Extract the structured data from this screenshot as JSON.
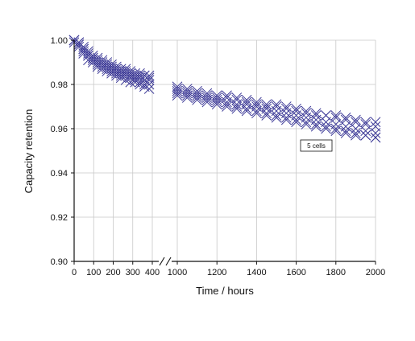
{
  "chart_data": {
    "type": "scatter",
    "xlabel": "Time / hours",
    "ylabel": "Capacity retention",
    "ylim": [
      0.9,
      1.0
    ],
    "grid": true,
    "marker": "x",
    "marker_color": "#3b3896",
    "axis_break": "between 400 and 1000 hours",
    "annotation": "5 cells",
    "segments": [
      {
        "xlim": [
          0,
          400
        ],
        "xticks": [
          0,
          100,
          200,
          300,
          400
        ],
        "xtick_labels": [
          "0",
          "100",
          "200",
          "300",
          "400"
        ]
      },
      {
        "xlim": [
          1000,
          2000
        ],
        "xticks": [
          1000,
          1200,
          1400,
          1600,
          1800,
          2000
        ],
        "xtick_labels": [
          "1000",
          "1200",
          "1400",
          "1600",
          "1800",
          "2000"
        ]
      }
    ],
    "yticks": [
      0.9,
      0.92,
      0.94,
      0.96,
      0.98,
      1.0
    ],
    "ytick_labels": [
      "0.90",
      "0.92",
      "0.94",
      "0.96",
      "0.98",
      "1.00"
    ],
    "series": [
      {
        "values": [
          [
            0,
            1.0
          ],
          [
            24,
            0.999
          ],
          [
            48,
            0.996
          ],
          [
            72,
            0.994
          ],
          [
            96,
            0.992
          ],
          [
            120,
            0.991
          ],
          [
            144,
            0.99
          ],
          [
            168,
            0.989
          ],
          [
            192,
            0.988
          ],
          [
            216,
            0.987
          ],
          [
            240,
            0.986
          ],
          [
            264,
            0.986
          ],
          [
            288,
            0.985
          ],
          [
            312,
            0.984
          ],
          [
            336,
            0.984
          ],
          [
            360,
            0.984
          ],
          [
            384,
            0.983
          ],
          [
            1000,
            0.978
          ],
          [
            1050,
            0.977
          ],
          [
            1100,
            0.976
          ],
          [
            1150,
            0.975
          ],
          [
            1200,
            0.974
          ],
          [
            1250,
            0.974
          ],
          [
            1300,
            0.973
          ],
          [
            1350,
            0.972
          ],
          [
            1400,
            0.971
          ],
          [
            1450,
            0.97
          ],
          [
            1500,
            0.97
          ],
          [
            1550,
            0.969
          ],
          [
            1600,
            0.968
          ],
          [
            1650,
            0.967
          ],
          [
            1700,
            0.966
          ],
          [
            1750,
            0.966
          ],
          [
            1800,
            0.965
          ],
          [
            1850,
            0.964
          ],
          [
            1900,
            0.963
          ],
          [
            1950,
            0.962
          ],
          [
            2000,
            0.961
          ]
        ]
      },
      {
        "values": [
          [
            0,
            1.0
          ],
          [
            24,
            0.998
          ],
          [
            48,
            0.995
          ],
          [
            72,
            0.993
          ],
          [
            96,
            0.991
          ],
          [
            120,
            0.989
          ],
          [
            144,
            0.988
          ],
          [
            168,
            0.987
          ],
          [
            192,
            0.986
          ],
          [
            216,
            0.985
          ],
          [
            240,
            0.984
          ],
          [
            264,
            0.984
          ],
          [
            288,
            0.983
          ],
          [
            312,
            0.982
          ],
          [
            336,
            0.981
          ],
          [
            360,
            0.98
          ],
          [
            384,
            0.98
          ],
          [
            1000,
            0.976
          ],
          [
            1050,
            0.975
          ],
          [
            1100,
            0.974
          ],
          [
            1150,
            0.973
          ],
          [
            1200,
            0.972
          ],
          [
            1250,
            0.971
          ],
          [
            1300,
            0.97
          ],
          [
            1350,
            0.969
          ],
          [
            1400,
            0.968
          ],
          [
            1450,
            0.967
          ],
          [
            1500,
            0.966
          ],
          [
            1550,
            0.965
          ],
          [
            1600,
            0.964
          ],
          [
            1650,
            0.963
          ],
          [
            1700,
            0.962
          ],
          [
            1750,
            0.961
          ],
          [
            1800,
            0.96
          ],
          [
            1850,
            0.959
          ],
          [
            1900,
            0.958
          ],
          [
            1950,
            0.957
          ],
          [
            2000,
            0.956
          ]
        ]
      },
      {
        "values": [
          [
            0,
            1.0
          ],
          [
            24,
            0.998
          ],
          [
            48,
            0.996
          ],
          [
            72,
            0.993
          ],
          [
            96,
            0.992
          ],
          [
            120,
            0.99
          ],
          [
            144,
            0.989
          ],
          [
            168,
            0.988
          ],
          [
            192,
            0.987
          ],
          [
            216,
            0.986
          ],
          [
            240,
            0.985
          ],
          [
            264,
            0.985
          ],
          [
            288,
            0.984
          ],
          [
            312,
            0.983
          ],
          [
            336,
            0.983
          ],
          [
            360,
            0.982
          ],
          [
            384,
            0.982
          ],
          [
            1000,
            0.977
          ],
          [
            1050,
            0.976
          ],
          [
            1100,
            0.975
          ],
          [
            1150,
            0.974
          ],
          [
            1200,
            0.973
          ],
          [
            1250,
            0.972
          ],
          [
            1300,
            0.971
          ],
          [
            1350,
            0.971
          ],
          [
            1400,
            0.97
          ],
          [
            1450,
            0.969
          ],
          [
            1500,
            0.968
          ],
          [
            1550,
            0.967
          ],
          [
            1600,
            0.966
          ],
          [
            1650,
            0.965
          ],
          [
            1700,
            0.964
          ],
          [
            1750,
            0.963
          ],
          [
            1800,
            0.962
          ],
          [
            1850,
            0.961
          ],
          [
            1900,
            0.96
          ],
          [
            1950,
            0.959
          ],
          [
            2000,
            0.958
          ]
        ]
      },
      {
        "values": [
          [
            0,
            0.999
          ],
          [
            24,
            0.997
          ],
          [
            48,
            0.994
          ],
          [
            72,
            0.991
          ],
          [
            96,
            0.99
          ],
          [
            120,
            0.988
          ],
          [
            144,
            0.987
          ],
          [
            168,
            0.986
          ],
          [
            192,
            0.985
          ],
          [
            216,
            0.984
          ],
          [
            240,
            0.983
          ],
          [
            264,
            0.982
          ],
          [
            288,
            0.981
          ],
          [
            312,
            0.981
          ],
          [
            336,
            0.98
          ],
          [
            360,
            0.979
          ],
          [
            384,
            0.978
          ],
          [
            1000,
            0.975
          ],
          [
            1050,
            0.974
          ],
          [
            1100,
            0.973
          ],
          [
            1150,
            0.972
          ],
          [
            1200,
            0.971
          ],
          [
            1250,
            0.97
          ],
          [
            1300,
            0.969
          ],
          [
            1350,
            0.968
          ],
          [
            1400,
            0.967
          ],
          [
            1450,
            0.966
          ],
          [
            1500,
            0.965
          ],
          [
            1550,
            0.964
          ],
          [
            1600,
            0.963
          ],
          [
            1650,
            0.962
          ],
          [
            1700,
            0.961
          ],
          [
            1750,
            0.96
          ],
          [
            1800,
            0.959
          ],
          [
            1850,
            0.958
          ],
          [
            1900,
            0.957
          ],
          [
            1950,
            0.957
          ],
          [
            2000,
            0.956
          ]
        ]
      },
      {
        "values": [
          [
            0,
            1.0
          ],
          [
            24,
            0.999
          ],
          [
            48,
            0.997
          ],
          [
            72,
            0.995
          ],
          [
            96,
            0.993
          ],
          [
            120,
            0.992
          ],
          [
            144,
            0.991
          ],
          [
            168,
            0.99
          ],
          [
            192,
            0.989
          ],
          [
            216,
            0.988
          ],
          [
            240,
            0.987
          ],
          [
            264,
            0.987
          ],
          [
            288,
            0.986
          ],
          [
            312,
            0.985
          ],
          [
            336,
            0.985
          ],
          [
            360,
            0.984
          ],
          [
            384,
            0.984
          ],
          [
            1000,
            0.979
          ],
          [
            1050,
            0.978
          ],
          [
            1100,
            0.977
          ],
          [
            1150,
            0.976
          ],
          [
            1200,
            0.975
          ],
          [
            1250,
            0.975
          ],
          [
            1300,
            0.974
          ],
          [
            1350,
            0.973
          ],
          [
            1400,
            0.972
          ],
          [
            1450,
            0.971
          ],
          [
            1500,
            0.971
          ],
          [
            1550,
            0.97
          ],
          [
            1600,
            0.969
          ],
          [
            1650,
            0.968
          ],
          [
            1700,
            0.967
          ],
          [
            1750,
            0.966
          ],
          [
            1800,
            0.966
          ],
          [
            1850,
            0.965
          ],
          [
            1900,
            0.964
          ],
          [
            1950,
            0.963
          ],
          [
            2000,
            0.963
          ]
        ]
      }
    ]
  }
}
